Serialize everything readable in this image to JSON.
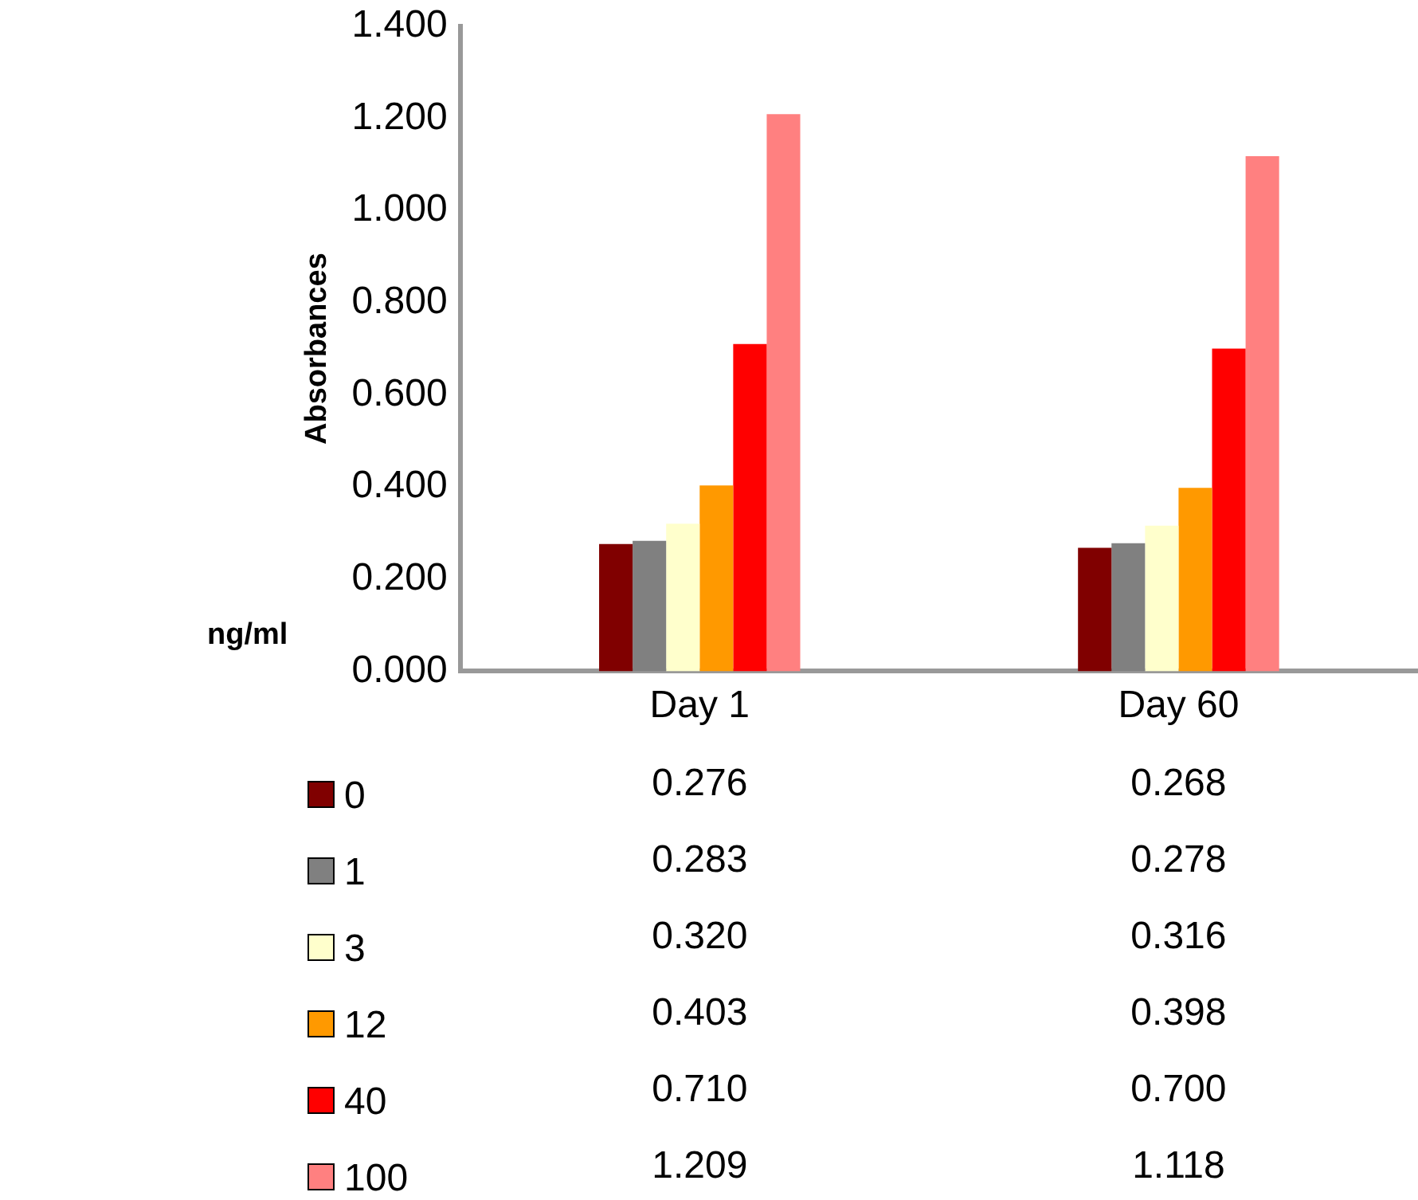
{
  "chart_data": {
    "type": "bar",
    "ylabel": "Absorbances",
    "legend_title": "ng/ml",
    "categories": [
      "Day 1",
      "Day 60"
    ],
    "ylim": [
      0,
      1.4
    ],
    "yticks": [
      {
        "value": 0,
        "label": "0.000"
      },
      {
        "value": 0.2,
        "label": "0.200"
      },
      {
        "value": 0.4,
        "label": "0.400"
      },
      {
        "value": 0.6,
        "label": "0.600"
      },
      {
        "value": 0.8,
        "label": "0.800"
      },
      {
        "value": 1,
        "label": "1.000"
      },
      {
        "value": 1.2,
        "label": "1.200"
      },
      {
        "value": 1.4,
        "label": "1.400"
      }
    ],
    "grid": false,
    "legend": "bottom left",
    "series": [
      {
        "name": "0",
        "color": "#800000",
        "values": [
          0.276,
          0.268
        ],
        "value_labels": [
          "0.276",
          "0.268"
        ]
      },
      {
        "name": "1",
        "color": "#808080",
        "values": [
          0.283,
          0.278
        ],
        "value_labels": [
          "0.283",
          "0.278"
        ]
      },
      {
        "name": "3",
        "color": "#ffffcc",
        "values": [
          0.32,
          0.316
        ],
        "value_labels": [
          "0.320",
          "0.316"
        ]
      },
      {
        "name": "12",
        "color": "#ff9900",
        "values": [
          0.403,
          0.398
        ],
        "value_labels": [
          "0.403",
          "0.398"
        ]
      },
      {
        "name": "40",
        "color": "#ff0000",
        "values": [
          0.71,
          0.7
        ],
        "value_labels": [
          "0.710",
          "0.700"
        ]
      },
      {
        "name": "100",
        "color": "#ff8080",
        "values": [
          1.209,
          1.118
        ],
        "value_labels": [
          "1.209",
          "1.118"
        ]
      }
    ]
  }
}
